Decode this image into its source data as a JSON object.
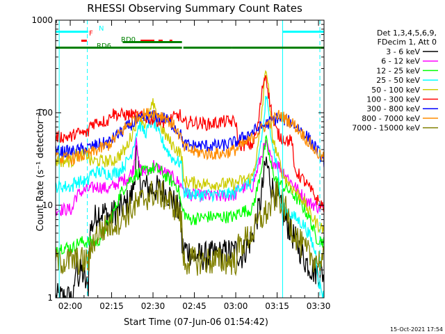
{
  "chart_data": {
    "type": "line",
    "title": "RHESSI Observing Summary Count Rates",
    "xlabel": "Start Time (07-Jun-06 01:54:42)",
    "ylabel": "Count Rate (s⁻¹ detector⁻¹)",
    "x_unit": "minutes",
    "xlim": [
      114.7,
      212.0
    ],
    "ylim": [
      1,
      1000
    ],
    "y_scale": "log",
    "x_ticks": [
      {
        "value": 120,
        "label": "02:00"
      },
      {
        "value": 135,
        "label": "02:15"
      },
      {
        "value": 150,
        "label": "02:30"
      },
      {
        "value": 165,
        "label": "02:45"
      },
      {
        "value": 180,
        "label": "03:00"
      },
      {
        "value": 195,
        "label": "03:15"
      },
      {
        "value": 210,
        "label": "03:30"
      }
    ],
    "y_ticks": [
      {
        "value": 1,
        "label": "1"
      },
      {
        "value": 10,
        "label": "10"
      },
      {
        "value": 100,
        "label": "100"
      },
      {
        "value": 1000,
        "label": "1000"
      }
    ],
    "legend": {
      "placement": "right",
      "header": [
        "Det 1,3,4,5,6,9,",
        "FDecim 1, Att 0"
      ]
    },
    "series": [
      {
        "name": "3 - 6 keV",
        "color": "#000000",
        "x": [
          114.7,
          121.5,
          121.6,
          122.5,
          123.0,
          124.0,
          126.5,
          127.0,
          130.0,
          134.0,
          134.1,
          136.0,
          138.0,
          140.0,
          142.0,
          143.0,
          144.0,
          145.0,
          147.0,
          149.0,
          150.5,
          152.0,
          154.0,
          156.0,
          158.0,
          160.0,
          160.5,
          163.0,
          165.0,
          168.0,
          175.0,
          180.0,
          182.0,
          186.0,
          189.0,
          191.0,
          193.0,
          195.0,
          197.0,
          199.0,
          201.0,
          203.0,
          205.0,
          208.0,
          212.0
        ],
        "y": [
          1.0,
          1.0,
          1.6,
          2.8,
          1.5,
          2.0,
          1.2,
          5.2,
          8.5,
          8.0,
          7.0,
          8.5,
          9.0,
          10.0,
          12.0,
          16.0,
          40.0,
          18.0,
          16.0,
          15.0,
          15.0,
          15.0,
          14.0,
          13.0,
          10.0,
          8.0,
          3.5,
          3.2,
          2.8,
          2.8,
          3.0,
          3.2,
          2.8,
          4.5,
          11.0,
          30.0,
          16.0,
          12.0,
          8.0,
          6.0,
          4.5,
          3.5,
          2.6,
          2.0,
          1.8
        ]
      },
      {
        "name": "6 - 12 keV",
        "color": "#ff00ff",
        "x": [
          114.7,
          121.0,
          121.5,
          124.0,
          127.0,
          130.0,
          134.0,
          135.5,
          138.0,
          141.0,
          143.0,
          144.0,
          145.0,
          147.0,
          149.0,
          150.0,
          151.0,
          153.0,
          155.0,
          157.0,
          159.0,
          160.5,
          163.0,
          170.0,
          175.0,
          180.0,
          181.0,
          186.0,
          188.0,
          190.0,
          191.0,
          192.0,
          193.0,
          195.0,
          197.0,
          200.0,
          203.0,
          206.0,
          210.0,
          212.0
        ],
        "y": [
          9.0,
          9.0,
          12.0,
          14.0,
          15.0,
          16.0,
          15.0,
          16.0,
          18.0,
          20.0,
          25.0,
          60.0,
          25.0,
          23.0,
          24.0,
          28.0,
          26.0,
          24.0,
          22.0,
          20.0,
          18.0,
          16.0,
          13.0,
          12.5,
          12.5,
          13.0,
          15.0,
          16.0,
          25.0,
          40.0,
          45.0,
          38.0,
          30.0,
          28.0,
          24.0,
          18.0,
          14.0,
          11.0,
          9.5,
          9.0
        ]
      },
      {
        "name": "12 - 25 keV",
        "color": "#00ff00",
        "x": [
          114.7,
          121.5,
          123.0,
          127.0,
          130.0,
          135.5,
          138.0,
          141.0,
          144.0,
          147.0,
          149.0,
          151.0,
          153.0,
          155.0,
          159.0,
          160.5,
          163.0,
          170.0,
          175.0,
          180.0,
          181.0,
          186.0,
          188.0,
          191.0,
          193.0,
          195.0,
          197.0,
          200.0,
          203.0,
          205.0,
          207.0,
          209.0,
          212.0
        ],
        "y": [
          3.5,
          3.5,
          4.0,
          4.0,
          4.0,
          8.0,
          13.0,
          18.0,
          22.0,
          23.0,
          25.0,
          25.0,
          23.0,
          20.0,
          16.0,
          9.0,
          7.0,
          7.5,
          7.5,
          7.5,
          8.5,
          9.0,
          16.0,
          50.0,
          25.0,
          18.0,
          16.0,
          14.0,
          11.0,
          9.0,
          7.0,
          4.5,
          4.0
        ]
      },
      {
        "name": "25 - 50 keV",
        "color": "#00ffff",
        "x": [
          114.7,
          121.0,
          121.5,
          126.5,
          127.0,
          130.0,
          134.0,
          135.5,
          138.0,
          140.0,
          142.0,
          144.0,
          145.0,
          146.0,
          147.0,
          148.0,
          150.0,
          151.0,
          152.0,
          154.0,
          157.0,
          160.5,
          161.0,
          165.0,
          170.0,
          175.0,
          180.0,
          181.0,
          185.0,
          187.0,
          190.0,
          191.0,
          192.0,
          194.0,
          195.5,
          196.0,
          200.0,
          205.0,
          207.0,
          209.0,
          210.0,
          212.0
        ],
        "y": [
          16.0,
          16.0,
          18.0,
          18.0,
          22.0,
          23.0,
          22.0,
          22.0,
          24.0,
          28.0,
          35.0,
          60.0,
          75.0,
          70.0,
          60.0,
          65.0,
          85.0,
          70.0,
          60.0,
          45.0,
          32.0,
          28.0,
          14.0,
          13.0,
          13.0,
          13.0,
          13.5,
          16.0,
          17.0,
          20.0,
          70.0,
          155.0,
          90.0,
          35.0,
          24.0,
          10.0,
          8.0,
          6.0,
          4.5,
          3.0,
          1.5,
          1.0
        ]
      },
      {
        "name": "50 - 100 keV",
        "color": "#cccc00",
        "x": [
          114.7,
          121.0,
          121.5,
          126.5,
          127.0,
          130.0,
          134.0,
          135.5,
          138.0,
          140.0,
          142.0,
          144.0,
          145.0,
          146.0,
          147.0,
          148.0,
          150.0,
          151.0,
          152.0,
          154.0,
          157.0,
          160.5,
          161.0,
          170.0,
          180.0,
          181.0,
          186.0,
          188.0,
          190.0,
          191.0,
          192.0,
          193.0,
          195.0,
          197.0,
          200.0,
          204.0,
          207.0,
          210.0,
          212.0
        ],
        "y": [
          30.0,
          30.0,
          35.0,
          35.0,
          30.0,
          30.0,
          30.0,
          30.0,
          35.0,
          40.0,
          55.0,
          80.0,
          100.0,
          85.0,
          75.0,
          85.0,
          125.0,
          95.0,
          80.0,
          60.0,
          45.0,
          35.0,
          18.0,
          17.0,
          17.0,
          18.0,
          20.0,
          40.0,
          150.0,
          330.0,
          160.0,
          60.0,
          35.0,
          22.0,
          16.0,
          12.0,
          8.0,
          6.0,
          5.5
        ]
      },
      {
        "name": "100 - 300 keV",
        "color": "#ff0000",
        "x": [
          114.7,
          121.0,
          121.5,
          126.5,
          127.0,
          130.0,
          134.0,
          134.5,
          138.0,
          142.0,
          146.0,
          150.0,
          154.0,
          158.0,
          160.0,
          160.5,
          164.0,
          170.0,
          175.0,
          180.0,
          181.0,
          186.0,
          188.0,
          190.0,
          191.0,
          192.0,
          194.0,
          196.0,
          199.0,
          200.5,
          201.0,
          205.0,
          210.0,
          212.0
        ],
        "y": [
          55.0,
          55.0,
          60.0,
          60.0,
          75.0,
          80.0,
          82.0,
          100.0,
          95.0,
          95.0,
          90.0,
          85.0,
          80.0,
          90.0,
          95.0,
          75.0,
          80.0,
          75.0,
          80.0,
          80.0,
          45.0,
          45.0,
          70.0,
          220.0,
          260.0,
          150.0,
          70.0,
          55.0,
          50.0,
          50.0,
          25.0,
          18.0,
          11.0,
          9.5
        ]
      },
      {
        "name": "300 - 800 keV",
        "color": "#0000ff",
        "x": [
          114.7,
          121.0,
          124.0,
          127.0,
          130.0,
          134.0,
          138.0,
          142.0,
          146.0,
          150.0,
          154.0,
          158.0,
          160.5,
          161.0,
          165.0,
          170.0,
          175.0,
          180.0,
          185.0,
          190.0,
          195.0,
          200.0,
          205.0,
          209.0,
          212.0
        ],
        "y": [
          38.0,
          38.0,
          40.0,
          42.0,
          45.0,
          48.0,
          60.0,
          75.0,
          85.0,
          92.0,
          88.0,
          70.0,
          55.0,
          45.0,
          44.0,
          44.0,
          44.0,
          48.0,
          60.0,
          72.0,
          88.0,
          80.0,
          60.0,
          42.0,
          30.0
        ]
      },
      {
        "name": "800 - 7000 keV",
        "color": "#ff8c00",
        "x": [
          114.7,
          121.0,
          124.0,
          127.0,
          130.0,
          134.0,
          138.0,
          142.0,
          146.0,
          150.0,
          154.0,
          158.0,
          160.5,
          161.0,
          165.0,
          170.0,
          175.0,
          180.0,
          185.0,
          190.0,
          196.0,
          201.0,
          205.0,
          209.0,
          212.0
        ],
        "y": [
          32.0,
          32.0,
          34.0,
          36.0,
          40.0,
          45.0,
          60.0,
          80.0,
          95.0,
          100.0,
          92.0,
          70.0,
          50.0,
          42.0,
          38.0,
          36.0,
          36.0,
          40.0,
          50.0,
          70.0,
          95.0,
          75.0,
          55.0,
          38.0,
          32.0
        ]
      },
      {
        "name": "7000 - 15000 keV",
        "color": "#808000",
        "x": [
          114.7,
          121.0,
          127.0,
          128.0,
          130.0,
          134.0,
          138.0,
          141.0,
          144.0,
          147.0,
          150.0,
          153.0,
          156.0,
          159.0,
          160.5,
          161.0,
          165.0,
          170.0,
          175.0,
          180.0,
          181.0,
          186.0,
          189.0,
          192.0,
          195.0,
          198.0,
          200.0,
          203.0,
          206.0,
          210.0,
          212.0
        ],
        "y": [
          2.5,
          2.5,
          2.5,
          4.0,
          5.0,
          6.0,
          7.0,
          8.5,
          10.0,
          12.0,
          13.5,
          13.0,
          11.0,
          9.0,
          6.0,
          2.5,
          2.5,
          2.5,
          2.5,
          2.5,
          3.5,
          5.0,
          7.0,
          9.0,
          13.0,
          9.0,
          6.0,
          4.0,
          3.0,
          2.5,
          2.5
        ]
      }
    ],
    "status_bars": [
      {
        "label": "N",
        "color": "#00ffff",
        "y": 750,
        "segments": [
          [
            114.7,
            126.5
          ],
          [
            197.0,
            212.0
          ]
        ]
      },
      {
        "label": "F",
        "color": "#ff0000",
        "y": 600,
        "segments": [
          [
            124.0,
            126.0
          ],
          [
            145.5,
            150.5
          ],
          [
            152.0,
            153.5
          ],
          [
            156.0,
            157.0
          ]
        ]
      },
      {
        "label": "RD0",
        "color": "#008000",
        "y": 580,
        "segments": [
          [
            139.0,
            160.5
          ]
        ]
      },
      {
        "label": "RD6",
        "color": "#008000",
        "y": 505,
        "segments": [
          [
            114.7,
            160.5
          ],
          [
            161.0,
            178.5
          ],
          [
            178.5,
            212.0
          ]
        ]
      }
    ],
    "vlines": [
      {
        "x": 116.0,
        "color": "#00ffff",
        "style": "solid"
      },
      {
        "x": 126.2,
        "color": "#00ffff",
        "style": "dashed"
      },
      {
        "x": 197.0,
        "color": "#00ffff",
        "style": "solid"
      },
      {
        "x": 210.5,
        "color": "#00ffff",
        "style": "dashed"
      }
    ],
    "footer": "15-Oct-2021 17:54"
  }
}
